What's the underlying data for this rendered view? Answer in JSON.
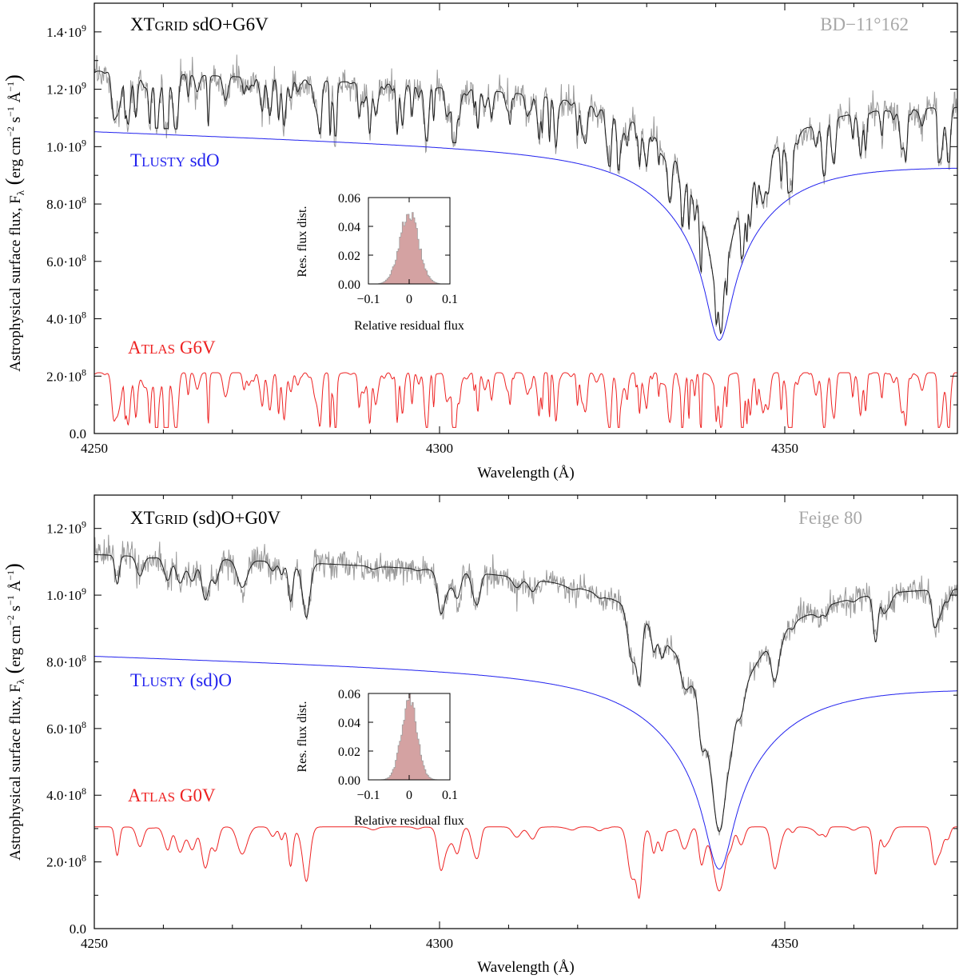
{
  "colors": {
    "observed": "#9a9a9a",
    "composite": "#1a1a1a",
    "tlusty": "#2222ee",
    "atlas": "#ee2222",
    "hist_fill": "#d4a2a2",
    "hist_edge": "#a0a0a0",
    "star_label": "#a8a8a8"
  },
  "chart_data": [
    {
      "type": "line",
      "panel": "top",
      "star": "BD−11°162",
      "xlabel": "Wavelength (Å)",
      "ylabel_main": "Astrophysical surface flux, F",
      "ylabel_sub": "λ",
      "ylabel_units": "erg cm",
      "xlim": [
        4250,
        4375
      ],
      "ylim": [
        0,
        1500000000.0
      ],
      "x_ticks": [
        4250,
        4300,
        4350
      ],
      "x_tick_labels": [
        "4250",
        "4300",
        "4350"
      ],
      "y_ticks": [
        0,
        200000000.0,
        400000000.0,
        600000000.0,
        800000000.0,
        1000000000.0,
        1200000000.0,
        1400000000.0
      ],
      "y_tick_labels": [
        {
          "mant": "0.0",
          "exp": ""
        },
        {
          "mant": "2.0·10",
          "exp": "8"
        },
        {
          "mant": "4.0·10",
          "exp": "8"
        },
        {
          "mant": "6.0·10",
          "exp": "8"
        },
        {
          "mant": "8.0·10",
          "exp": "8"
        },
        {
          "mant": "1.0·10",
          "exp": "9"
        },
        {
          "mant": "1.2·10",
          "exp": "9"
        },
        {
          "mant": "1.4·10",
          "exp": "9"
        }
      ],
      "labels": {
        "composite_a": "XT",
        "composite_b": "GRID",
        "composite_c": " sdO+G6V",
        "tlusty_a": "T",
        "tlusty_b": "LUSTY",
        "tlusty_c": " sdO",
        "atlas_a": "A",
        "atlas_b": "TLAS",
        "atlas_c": " G6V"
      },
      "model": {
        "seed": 11,
        "tlusty": {
          "start": 1055000000.0,
          "end": 945000000.0,
          "mid": 1010000000.0,
          "line_center": 4340.5,
          "line_depth": 650000000.0,
          "line_width": 2.4,
          "line_wing": 9
        },
        "atlas": {
          "continuum": 212000000.0,
          "n_lines": 230,
          "max_depth": 180000000.0,
          "width_min": 0.1,
          "width_max": 0.32,
          "hbeta_depth": 35000000.0
        },
        "noise": 0.045
      },
      "inset": {
        "title_y": "Res. flux dist.",
        "title_x": "Relative residual flux",
        "xlim": [
          -0.1,
          0.1
        ],
        "ylim": [
          0,
          0.06
        ],
        "x_ticks": [
          -0.1,
          0,
          0.1
        ],
        "x_tick_labels": [
          "−0.1",
          "0",
          "0.1"
        ],
        "y_ticks": [
          0,
          0.02,
          0.04,
          0.06
        ],
        "y_tick_labels": [
          "0.00",
          "0.02",
          "0.04",
          "0.06"
        ],
        "sigma": 0.023,
        "peak": 0.049
      }
    },
    {
      "type": "line",
      "panel": "bottom",
      "star": "Feige 80",
      "xlabel": "Wavelength (Å)",
      "ylabel_main": "Astrophysical surface flux, F",
      "ylabel_sub": "λ",
      "ylabel_units": "erg cm",
      "xlim": [
        4250,
        4375
      ],
      "ylim": [
        0,
        1300000000.0
      ],
      "x_ticks": [
        4250,
        4300,
        4350
      ],
      "x_tick_labels": [
        "4250",
        "4300",
        "4350"
      ],
      "y_ticks": [
        0,
        200000000.0,
        400000000.0,
        600000000.0,
        800000000.0,
        1000000000.0,
        1200000000.0
      ],
      "y_tick_labels": [
        {
          "mant": "0.0",
          "exp": ""
        },
        {
          "mant": "2.0·10",
          "exp": "8"
        },
        {
          "mant": "4.0·10",
          "exp": "8"
        },
        {
          "mant": "6.0·10",
          "exp": "8"
        },
        {
          "mant": "8.0·10",
          "exp": "8"
        },
        {
          "mant": "1.0·10",
          "exp": "9"
        },
        {
          "mant": "1.2·10",
          "exp": "9"
        }
      ],
      "labels": {
        "composite_a": "XT",
        "composite_b": "GRID",
        "composite_c": " (sd)O+G0V",
        "tlusty_a": "T",
        "tlusty_b": "LUSTY",
        "tlusty_c": " (sd)O",
        "atlas_a": "A",
        "atlas_b": "TLAS",
        "atlas_c": " G0V"
      },
      "model": {
        "seed": 27,
        "tlusty": {
          "start": 820000000.0,
          "end": 735000000.0,
          "mid": 780000000.0,
          "line_center": 4340.5,
          "line_depth": 580000000.0,
          "line_width": 2.7,
          "line_wing": 10
        },
        "atlas": {
          "continuum": 305000000.0,
          "n_lines": 90,
          "max_depth": 110000000.0,
          "width_min": 0.28,
          "width_max": 0.65,
          "hbeta_depth": 185000000.0
        },
        "noise": 0.04
      },
      "inset": {
        "title_y": "Res. flux dist.",
        "title_x": "Relative residual flux",
        "xlim": [
          -0.1,
          0.1
        ],
        "ylim": [
          0,
          0.06
        ],
        "x_ticks": [
          -0.1,
          0,
          0.1
        ],
        "x_tick_labels": [
          "−0.1",
          "0",
          "0.1"
        ],
        "y_ticks": [
          0,
          0.02,
          0.04,
          0.06
        ],
        "y_tick_labels": [
          "0.00",
          "0.02",
          "0.04",
          "0.06"
        ],
        "sigma": 0.019,
        "peak": 0.056
      }
    }
  ]
}
